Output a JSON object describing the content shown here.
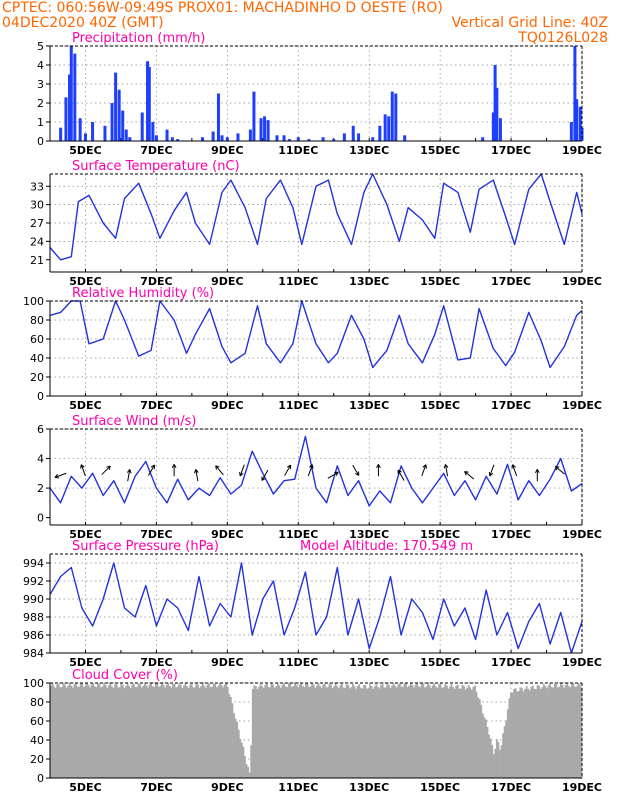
{
  "header": {
    "line1_left": "CPTEC:   060:56W-09:49S   PROX01: MACHADINHO D OESTE (RO)",
    "line2_left": "04DEC2020 40Z (GMT)",
    "line2_right": "Vertical Grid Line: 40Z",
    "line3_right": "TQ0126L028",
    "color_header": "#ff6600",
    "color_title": "#ff00aa"
  },
  "x_axis": {
    "ticks": [
      "5DEC",
      "7DEC",
      "9DEC",
      "11DEC",
      "13DEC",
      "15DEC",
      "17DEC",
      "19DEC"
    ],
    "start_day": 4.0,
    "end_day": 19.0
  },
  "panels": [
    {
      "id": "precipitation",
      "title": "Precipitation (mm/h)",
      "type": "bar",
      "ylim": [
        0,
        5
      ],
      "yticks": [
        "0",
        "1",
        "2",
        "3",
        "4",
        "5"
      ],
      "color": "#1f3fff"
    },
    {
      "id": "temperature",
      "title": "Surface Temperature (nC)",
      "type": "line",
      "ylim": [
        19,
        35
      ],
      "yticks": [
        "21",
        "24",
        "27",
        "30",
        "33"
      ],
      "color": "#2233dd"
    },
    {
      "id": "humidity",
      "title": "Relative Humidity (%)",
      "type": "line",
      "ylim": [
        0,
        100
      ],
      "yticks": [
        "0",
        "20",
        "40",
        "60",
        "80",
        "100"
      ],
      "color": "#2233dd"
    },
    {
      "id": "wind",
      "title": "Surface Wind (m/s)",
      "type": "line",
      "ylim": [
        -0.5,
        6
      ],
      "yticks": [
        "0",
        "2",
        "4",
        "6"
      ],
      "color": "#2233dd"
    },
    {
      "id": "pressure",
      "title": "Surface Pressure (hPa)",
      "subtitle": "Model Altitude: 170.549 m",
      "type": "line",
      "ylim": [
        984,
        995
      ],
      "yticks": [
        "984",
        "986",
        "988",
        "990",
        "992",
        "994"
      ],
      "color": "#2233dd"
    },
    {
      "id": "cloud",
      "title": "Cloud Cover (%)",
      "type": "bar",
      "ylim": [
        0,
        100
      ],
      "yticks": [
        "0",
        "20",
        "40",
        "60",
        "80",
        "100"
      ],
      "color": "#a9a9a9"
    }
  ],
  "chart_data": [
    {
      "type": "bar",
      "title": "Precipitation (mm/h)",
      "ylim": [
        0,
        5
      ],
      "x": [
        4.3,
        4.45,
        4.55,
        4.6,
        4.7,
        4.85,
        5.0,
        5.2,
        5.55,
        5.75,
        5.85,
        5.95,
        6.05,
        6.15,
        6.25,
        6.6,
        6.75,
        6.8,
        6.9,
        7.0,
        7.3,
        7.45,
        7.6,
        8.3,
        8.6,
        8.75,
        8.85,
        9.0,
        9.3,
        9.65,
        9.75,
        9.95,
        10.05,
        10.15,
        10.4,
        10.6,
        10.75,
        11.0,
        11.3,
        11.7,
        12.0,
        12.3,
        12.55,
        12.7,
        13.1,
        13.3,
        13.45,
        13.55,
        13.65,
        13.75,
        14.0,
        16.2,
        16.5,
        16.55,
        16.6,
        16.7,
        18.7,
        18.8,
        18.85,
        18.95,
        19.0
      ],
      "values": [
        0.7,
        2.3,
        3.5,
        5.0,
        4.6,
        1.2,
        0.4,
        1.0,
        0.8,
        2.0,
        3.6,
        2.7,
        1.6,
        0.6,
        0.2,
        1.5,
        4.2,
        3.9,
        1.0,
        0.3,
        0.6,
        0.2,
        0.1,
        0.2,
        0.5,
        2.5,
        0.3,
        0.2,
        0.4,
        0.6,
        2.6,
        1.2,
        1.3,
        1.1,
        0.3,
        0.3,
        0.1,
        0.2,
        0.1,
        0.2,
        0.1,
        0.4,
        0.8,
        0.4,
        0.2,
        0.8,
        1.4,
        1.3,
        2.6,
        2.5,
        0.3,
        0.2,
        1.5,
        4.0,
        2.8,
        1.2,
        1.0,
        5.0,
        2.2,
        1.8,
        0.7
      ],
      "units": "mm/h"
    },
    {
      "type": "line",
      "title": "Surface Temperature (nC)",
      "ylim": [
        19,
        35
      ],
      "x": [
        4.0,
        4.3,
        4.6,
        4.8,
        5.1,
        5.5,
        5.85,
        6.1,
        6.5,
        6.85,
        7.1,
        7.5,
        7.85,
        8.1,
        8.5,
        8.85,
        9.1,
        9.5,
        9.85,
        10.1,
        10.5,
        10.85,
        11.1,
        11.5,
        11.85,
        12.1,
        12.5,
        12.85,
        13.1,
        13.5,
        13.85,
        14.1,
        14.5,
        14.85,
        15.1,
        15.5,
        15.85,
        16.1,
        16.5,
        16.85,
        17.1,
        17.5,
        17.85,
        18.1,
        18.5,
        18.85,
        19.0
      ],
      "values": [
        23.0,
        21.0,
        21.5,
        30.5,
        31.5,
        27.0,
        24.5,
        31.0,
        33.5,
        28.5,
        24.5,
        29.0,
        32.0,
        27.0,
        23.5,
        32.0,
        34.0,
        29.5,
        23.5,
        31.0,
        34.0,
        29.5,
        23.5,
        33.0,
        34.0,
        28.5,
        23.5,
        32.0,
        35.0,
        30.0,
        24.0,
        29.5,
        27.5,
        24.5,
        33.5,
        32.0,
        25.5,
        32.5,
        34.0,
        28.0,
        23.5,
        32.5,
        35.0,
        30.5,
        23.5,
        32.0,
        28.5
      ],
      "units": "C"
    },
    {
      "type": "line",
      "title": "Relative Humidity (%)",
      "ylim": [
        0,
        100
      ],
      "x": [
        4.0,
        4.3,
        4.6,
        4.85,
        5.1,
        5.5,
        5.85,
        6.1,
        6.5,
        6.85,
        7.1,
        7.5,
        7.85,
        8.1,
        8.5,
        8.85,
        9.1,
        9.5,
        9.85,
        10.1,
        10.5,
        10.85,
        11.1,
        11.5,
        11.85,
        12.1,
        12.5,
        12.85,
        13.1,
        13.5,
        13.85,
        14.1,
        14.5,
        14.85,
        15.1,
        15.5,
        15.85,
        16.1,
        16.5,
        16.85,
        17.1,
        17.5,
        17.85,
        18.1,
        18.5,
        18.85,
        19.0
      ],
      "values": [
        85,
        88,
        100,
        100,
        55,
        60,
        100,
        80,
        42,
        48,
        100,
        80,
        45,
        65,
        92,
        52,
        35,
        45,
        95,
        55,
        35,
        55,
        100,
        55,
        35,
        45,
        85,
        60,
        30,
        48,
        85,
        55,
        35,
        65,
        95,
        38,
        40,
        92,
        50,
        32,
        46,
        88,
        58,
        30,
        52,
        85,
        90
      ],
      "units": "%"
    },
    {
      "type": "line",
      "title": "Surface Wind (m/s)",
      "ylim": [
        -0.5,
        6
      ],
      "x": [
        4.0,
        4.3,
        4.6,
        4.9,
        5.2,
        5.5,
        5.8,
        6.1,
        6.4,
        6.7,
        7.0,
        7.3,
        7.6,
        7.9,
        8.2,
        8.5,
        8.8,
        9.1,
        9.4,
        9.7,
        10.0,
        10.3,
        10.6,
        10.9,
        11.2,
        11.5,
        11.8,
        12.1,
        12.4,
        12.7,
        13.0,
        13.3,
        13.6,
        13.9,
        14.2,
        14.5,
        14.8,
        15.1,
        15.4,
        15.7,
        16.0,
        16.3,
        16.6,
        16.9,
        17.2,
        17.5,
        17.8,
        18.1,
        18.4,
        18.7,
        19.0
      ],
      "values": [
        2.0,
        1.0,
        2.8,
        2.0,
        3.0,
        1.5,
        2.5,
        1.0,
        2.8,
        3.8,
        2.0,
        1.0,
        2.6,
        1.2,
        2.0,
        1.5,
        2.7,
        1.6,
        2.2,
        4.5,
        3.0,
        1.6,
        2.5,
        2.6,
        5.5,
        2.0,
        1.0,
        3.5,
        1.5,
        2.5,
        0.8,
        1.8,
        1.0,
        3.5,
        2.0,
        1.0,
        2.0,
        3.0,
        1.5,
        2.5,
        1.2,
        2.8,
        1.6,
        3.6,
        1.2,
        2.5,
        1.5,
        2.6,
        4.0,
        1.8,
        2.3
      ],
      "units": "m/s"
    },
    {
      "type": "line",
      "title": "Surface Pressure (hPa)",
      "ylim": [
        984,
        995
      ],
      "x": [
        4.0,
        4.3,
        4.6,
        4.9,
        5.2,
        5.5,
        5.8,
        6.1,
        6.4,
        6.7,
        7.0,
        7.3,
        7.6,
        7.9,
        8.2,
        8.5,
        8.8,
        9.1,
        9.4,
        9.7,
        10.0,
        10.3,
        10.6,
        10.9,
        11.2,
        11.5,
        11.8,
        12.1,
        12.4,
        12.7,
        13.0,
        13.3,
        13.6,
        13.9,
        14.2,
        14.5,
        14.8,
        15.1,
        15.4,
        15.7,
        16.0,
        16.3,
        16.6,
        16.9,
        17.2,
        17.5,
        17.8,
        18.1,
        18.4,
        18.7,
        19.0
      ],
      "values": [
        990.5,
        992.5,
        993.5,
        989.0,
        987.0,
        990.0,
        994.0,
        989.0,
        988.0,
        991.5,
        987.0,
        990.0,
        989.0,
        986.5,
        992.5,
        987.0,
        989.5,
        988.0,
        994.0,
        986.0,
        990.0,
        992.0,
        986.0,
        989.0,
        993.0,
        986.0,
        988.0,
        993.5,
        986.0,
        990.0,
        984.5,
        988.0,
        992.5,
        986.0,
        990.0,
        988.5,
        985.5,
        990.0,
        987.0,
        989.0,
        985.5,
        991.0,
        986.0,
        988.5,
        984.5,
        987.5,
        989.5,
        985.0,
        988.5,
        984.0,
        987.5
      ],
      "units": "hPa"
    },
    {
      "type": "bar",
      "title": "Cloud Cover (%)",
      "ylim": [
        0,
        100
      ],
      "x": [
        4.0,
        5.0,
        6.0,
        7.0,
        8.0,
        9.0,
        9.65,
        9.7,
        10.0,
        11.0,
        12.0,
        13.0,
        14.0,
        15.0,
        16.0,
        16.4,
        16.5,
        16.6,
        16.7,
        17.0,
        18.0,
        19.0
      ],
      "values": [
        97,
        98,
        97,
        98,
        97,
        98,
        0,
        95,
        97,
        98,
        97,
        96,
        98,
        97,
        95,
        45,
        25,
        40,
        30,
        92,
        97,
        98
      ],
      "units": "%"
    }
  ]
}
